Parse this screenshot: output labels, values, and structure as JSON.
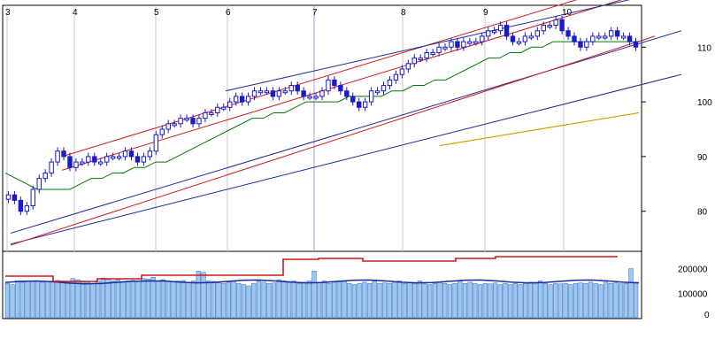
{
  "chart_data": [
    {
      "type": "candlestick",
      "title": "",
      "x_ticks": [
        "3",
        "4",
        "5",
        "6",
        "7",
        "8",
        "9",
        "10"
      ],
      "y_ticks": [
        80,
        90,
        100,
        110
      ],
      "ylim": [
        73,
        117
      ],
      "grid": "vertical month lines",
      "close_approx": [
        83,
        82,
        80,
        81,
        84,
        86,
        87,
        89,
        91,
        90,
        88,
        89,
        89,
        90,
        89,
        89,
        90,
        90,
        90,
        91,
        90,
        89,
        90,
        91,
        94,
        95,
        96,
        96,
        97,
        97,
        96,
        97,
        98,
        98,
        99,
        99,
        100,
        101,
        100,
        101,
        102,
        102,
        102,
        101,
        102,
        102,
        103,
        102,
        101,
        101,
        101,
        102,
        104,
        103,
        102,
        101,
        100,
        99,
        100,
        102,
        102,
        103,
        104,
        105,
        106,
        107,
        108,
        108,
        109,
        109,
        110,
        110,
        111,
        110,
        111,
        111,
        111,
        112,
        113,
        113,
        114,
        112,
        111,
        111,
        112,
        112,
        113,
        114,
        114,
        115,
        113,
        112,
        111,
        110,
        111,
        112,
        112,
        112,
        113,
        112,
        112,
        111,
        110
      ],
      "moving_average": [
        87,
        86,
        85,
        84,
        84,
        84,
        84,
        85,
        86,
        86,
        87,
        87,
        88,
        88,
        89,
        89,
        90,
        91,
        92,
        93,
        94,
        95,
        96,
        97,
        97,
        98,
        98,
        99,
        100,
        100,
        100,
        100,
        101,
        101,
        101,
        101,
        102,
        102,
        103,
        103,
        104,
        104,
        105,
        106,
        107,
        108,
        108,
        109,
        109,
        110,
        110,
        111,
        111,
        111,
        111,
        111,
        111,
        111,
        111,
        111
      ],
      "long_average": [
        92,
        94,
        96,
        98
      ],
      "channel_lines": "parallel upward trend channels (blue and red)",
      "colors": {
        "candle": "#1a1acc",
        "ma": "#007a00",
        "long_ma": "#c8a000",
        "channel_blue": "#1a2a9c",
        "channel_red": "#cc1a1a"
      }
    },
    {
      "type": "bar",
      "title": "",
      "y_ticks": [
        0,
        100000,
        200000
      ],
      "ylim": [
        0,
        260000
      ],
      "values": [
        140000,
        135000,
        150000,
        145000,
        150000,
        148000,
        150000,
        145000,
        148000,
        150000,
        152000,
        150000,
        146000,
        160000,
        155000,
        150000,
        145000,
        140000,
        150000,
        162000,
        158000,
        150000,
        155000,
        148000,
        150000,
        152000,
        150000,
        160000,
        158000,
        165000,
        150000,
        155000,
        150000,
        148000,
        150000,
        152000,
        145000,
        150000,
        190000,
        185000,
        150000,
        148000,
        142000,
        140000,
        145000,
        148000,
        140000,
        135000,
        130000,
        140000,
        150000,
        145000,
        140000,
        142000,
        155000,
        150000,
        148000,
        150000,
        140000,
        145000,
        150000,
        190000,
        145000,
        150000,
        140000,
        145000,
        150000,
        148000,
        140000,
        135000,
        140000,
        145000,
        140000,
        150000,
        140000,
        142000,
        140000,
        145000,
        150000,
        140000,
        145000,
        140000,
        150000,
        138000,
        135000,
        140000,
        145000,
        140000,
        135000,
        140000,
        150000,
        140000,
        145000,
        140000,
        135000,
        140000,
        138000,
        142000,
        135000,
        140000,
        135000,
        140000,
        135000,
        140000,
        145000,
        140000,
        150000,
        140000,
        135000,
        140000,
        138000,
        140000,
        135000,
        140000,
        142000,
        140000,
        145000,
        140000,
        135000,
        145000,
        140000,
        142000,
        138000,
        140000,
        200000,
        145000
      ],
      "volume_average_line": "dark blue, ~150000",
      "ratio_line": "red stepped, rising",
      "colors": {
        "bar": "#9cc8f0",
        "bar_edge": "#4a7ac8",
        "avg": "#1a2a9c",
        "ratio": "#cc1a1a"
      }
    }
  ]
}
